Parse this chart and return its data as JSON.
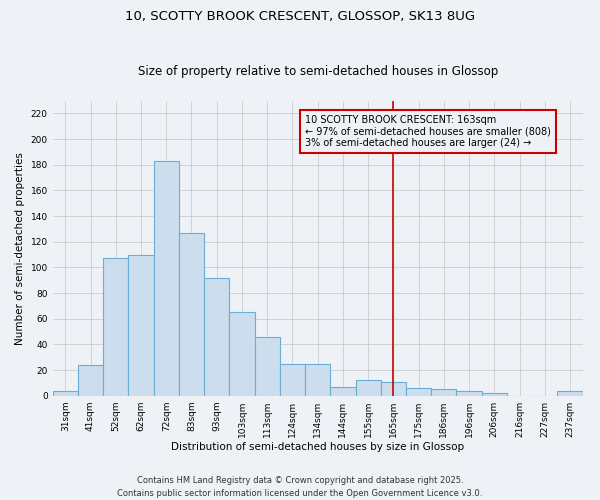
{
  "title1": "10, SCOTTY BROOK CRESCENT, GLOSSOP, SK13 8UG",
  "title2": "Size of property relative to semi-detached houses in Glossop",
  "xlabel": "Distribution of semi-detached houses by size in Glossop",
  "ylabel": "Number of semi-detached properties",
  "categories": [
    "31sqm",
    "41sqm",
    "52sqm",
    "62sqm",
    "72sqm",
    "83sqm",
    "93sqm",
    "103sqm",
    "113sqm",
    "124sqm",
    "134sqm",
    "144sqm",
    "155sqm",
    "165sqm",
    "175sqm",
    "186sqm",
    "196sqm",
    "206sqm",
    "216sqm",
    "227sqm",
    "237sqm"
  ],
  "values": [
    4,
    24,
    107,
    110,
    183,
    127,
    92,
    65,
    46,
    25,
    25,
    7,
    12,
    11,
    6,
    5,
    4,
    2,
    0,
    0,
    4
  ],
  "bar_color": "#ccdded",
  "bar_edge_color": "#6aaed6",
  "bar_linewidth": 0.8,
  "grid_color": "#cccccc",
  "background_color": "#eef2f7",
  "vline_index": 13,
  "vline_color": "#cc0000",
  "annotation_text": "10 SCOTTY BROOK CRESCENT: 163sqm\n← 97% of semi-detached houses are smaller (808)\n3% of semi-detached houses are larger (24) →",
  "annotation_box_color": "#cc0000",
  "ylim": [
    0,
    230
  ],
  "yticks": [
    0,
    20,
    40,
    60,
    80,
    100,
    120,
    140,
    160,
    180,
    200,
    220
  ],
  "footer": "Contains HM Land Registry data © Crown copyright and database right 2025.\nContains public sector information licensed under the Open Government Licence v3.0.",
  "title_fontsize": 9.5,
  "subtitle_fontsize": 8.5,
  "axis_label_fontsize": 7.5,
  "tick_fontsize": 6.5,
  "annotation_fontsize": 7,
  "footer_fontsize": 6
}
